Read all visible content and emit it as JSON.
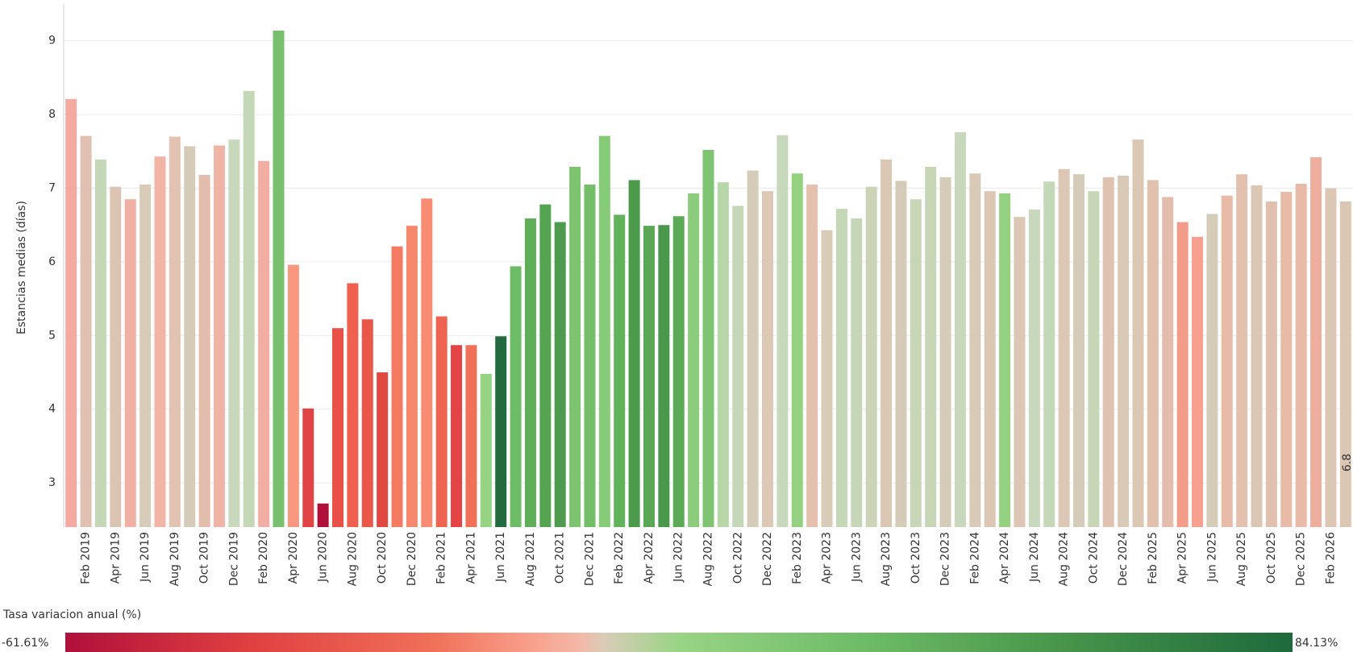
{
  "chart_data": {
    "type": "bar",
    "y_label": "Estancias medias (días)",
    "categories": [
      null,
      "Feb 2019",
      null,
      "Apr 2019",
      null,
      "Jun 2019",
      null,
      "Aug 2019",
      null,
      "Oct 2019",
      null,
      "Dec 2019",
      null,
      "Feb 2020",
      null,
      "Apr 2020",
      null,
      "Jun 2020",
      null,
      "Aug 2020",
      null,
      "Oct 2020",
      null,
      "Dec 2020",
      null,
      "Feb 2021",
      null,
      "Apr 2021",
      null,
      "Jun 2021",
      null,
      "Aug 2021",
      null,
      "Oct 2021",
      null,
      "Dec 2021",
      null,
      "Feb 2022",
      null,
      "Apr 2022",
      null,
      "Jun 2022",
      null,
      "Aug 2022",
      null,
      "Oct 2022",
      null,
      "Dec 2022",
      null,
      "Feb 2023",
      null,
      "Apr 2023",
      null,
      "Jun 2023",
      null,
      "Aug 2023",
      null,
      "Oct 2023",
      null,
      "Dec 2023",
      null,
      "Feb 2024",
      null,
      "Apr 2024",
      null,
      "Jun 2024",
      null,
      "Aug 2024",
      null,
      "Oct 2024",
      null,
      "Dec 2024",
      null,
      "Feb 2025",
      null,
      "Apr 2025",
      null,
      "Jun 2025",
      null,
      "Aug 2025",
      null,
      "Oct 2025",
      null,
      "Dec 2025",
      null,
      "Feb 2026",
      null
    ],
    "values": [
      8.21,
      7.71,
      7.39,
      7.02,
      6.85,
      7.05,
      7.43,
      7.7,
      7.57,
      7.18,
      7.58,
      7.66,
      8.32,
      7.37,
      9.14,
      5.96,
      4.01,
      2.72,
      5.1,
      5.71,
      5.22,
      4.5,
      6.21,
      6.49,
      6.86,
      5.26,
      4.87,
      4.87,
      4.48,
      4.99,
      5.94,
      6.59,
      6.78,
      6.54,
      7.29,
      7.05,
      7.71,
      6.64,
      7.11,
      6.49,
      6.5,
      6.62,
      6.93,
      7.52,
      7.08,
      6.76,
      7.24,
      6.96,
      7.72,
      7.2,
      7.05,
      6.43,
      6.72,
      6.59,
      7.02,
      7.39,
      7.1,
      6.85,
      7.29,
      7.15,
      7.76,
      7.2,
      6.96,
      6.93,
      6.61,
      6.71,
      7.09,
      7.26,
      7.19,
      6.96,
      7.15,
      7.17,
      7.66,
      7.11,
      6.88,
      6.54,
      6.34,
      6.65,
      6.9,
      7.19,
      7.04,
      6.82,
      6.95,
      7.06,
      7.42,
      7.0,
      6.82
    ],
    "value_labels": [
      null,
      null,
      null,
      null,
      null,
      null,
      null,
      null,
      null,
      null,
      null,
      null,
      null,
      null,
      null,
      null,
      null,
      null,
      null,
      null,
      null,
      null,
      null,
      null,
      null,
      null,
      null,
      null,
      null,
      null,
      null,
      null,
      null,
      null,
      null,
      null,
      null,
      null,
      null,
      null,
      null,
      null,
      null,
      null,
      null,
      null,
      null,
      null,
      null,
      null,
      null,
      null,
      null,
      null,
      null,
      null,
      null,
      null,
      null,
      null,
      null,
      null,
      null,
      null,
      null,
      null,
      null,
      null,
      null,
      null,
      null,
      null,
      null,
      null,
      null,
      null,
      null,
      null,
      null,
      null,
      null,
      null,
      null,
      null,
      null,
      null,
      "6.8"
    ],
    "colors": [
      "#f4aaa0",
      "#e0c0b0",
      "#c4d8b8",
      "#dcc4b4",
      "#f0b0a4",
      "#d8ccb8",
      "#f2b4a4",
      "#e2c2b0",
      "#d4cbb8",
      "#e4bcac",
      "#f0b4a6",
      "#c8d8bc",
      "#c4d8b8",
      "#f2aea2",
      "#78c06e",
      "#f89880",
      "#e04444",
      "#b0103a",
      "#e85048",
      "#f06050",
      "#ea5648",
      "#e24842",
      "#f47a62",
      "#f6886e",
      "#f88c72",
      "#ee6450",
      "#e44444",
      "#f07058",
      "#96d484",
      "#236b3e",
      "#6dbc66",
      "#5fae58",
      "#55a452",
      "#4e9a4e",
      "#7cc470",
      "#74be6a",
      "#86cc78",
      "#62b25c",
      "#4c9a4c",
      "#5aa856",
      "#4a984c",
      "#5caa58",
      "#8ccc7c",
      "#7ec472",
      "#b8d6a8",
      "#c4d8b8",
      "#d4ccb8",
      "#dcc8b4",
      "#c8d8bc",
      "#94d282",
      "#e4c0ae",
      "#d8ccb8",
      "#c4d8b8",
      "#c8d6b8",
      "#ccd4b8",
      "#dcc6b4",
      "#d4ccb8",
      "#c8d6b8",
      "#c8d6b8",
      "#d4ccb8",
      "#c8d8bc",
      "#d8cab6",
      "#dcc6b4",
      "#94d282",
      "#dcc6b4",
      "#c8d8bc",
      "#c4d8b8",
      "#dcc6b4",
      "#d4ccb8",
      "#c8d6b8",
      "#e0c2b0",
      "#d8cab6",
      "#dcc6b4",
      "#e2c0ae",
      "#e4bcac",
      "#f49c8a",
      "#f8a090",
      "#d4ccb8",
      "#e8baa8",
      "#e4c0ae",
      "#dcc6b4",
      "#e2c0ae",
      "#e8baa8",
      "#e8baa8",
      "#eeae9e",
      "#dcc6b4",
      "#dcc6b4"
    ],
    "ylim": [
      2.4,
      9.5
    ],
    "yticks": [
      3,
      4,
      5,
      6,
      7,
      8,
      9
    ],
    "grid": true,
    "color_legend": {
      "title": "Tasa variacion anual (%)",
      "min": {
        "value": -61.61,
        "label": "-61.61%"
      },
      "max": {
        "value": 84.13,
        "label": "84.13%"
      }
    }
  }
}
